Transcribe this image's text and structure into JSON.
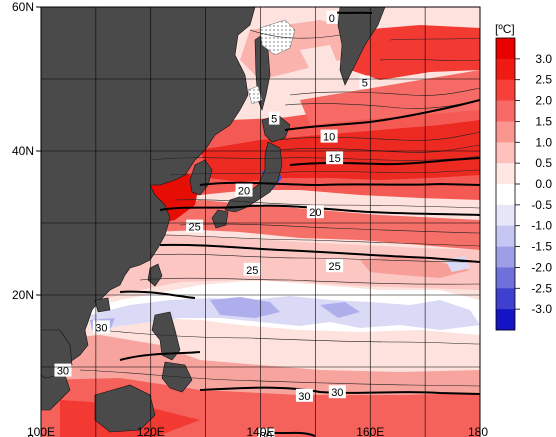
{
  "map": {
    "lat_ticks": [
      {
        "value": 0,
        "label": "0"
      },
      {
        "value": 20,
        "label": "20N"
      },
      {
        "value": 40,
        "label": "40N"
      },
      {
        "value": 60,
        "label": "60N"
      }
    ],
    "lon_ticks": [
      {
        "value": 100,
        "label": "100E"
      },
      {
        "value": 120,
        "label": "120E"
      },
      {
        "value": 140,
        "label": "140E"
      },
      {
        "value": 160,
        "label": "160E"
      },
      {
        "value": 180,
        "label": "180"
      }
    ],
    "lon_range": [
      100,
      180
    ],
    "lat_range": [
      0,
      60
    ],
    "grid_step_deg": 10,
    "land_color": "#4a4a4a",
    "contour_labels": [
      {
        "text": "0",
        "lon": 153,
        "lat": 58.5
      },
      {
        "text": "5",
        "lon": 159,
        "lat": 49.5
      },
      {
        "text": "5",
        "lon": 142.5,
        "lat": 44.5
      },
      {
        "text": "10",
        "lon": 152.5,
        "lat": 42
      },
      {
        "text": "15",
        "lon": 153.5,
        "lat": 39
      },
      {
        "text": "20",
        "lon": 137,
        "lat": 34.5
      },
      {
        "text": "20",
        "lon": 150,
        "lat": 31.5
      },
      {
        "text": "25",
        "lon": 128,
        "lat": 29.5
      },
      {
        "text": "25",
        "lon": 138.5,
        "lat": 23.5
      },
      {
        "text": "25",
        "lon": 153.5,
        "lat": 24
      },
      {
        "text": "30",
        "lon": 111,
        "lat": 15.5
      },
      {
        "text": "30",
        "lon": 104,
        "lat": 9.5
      },
      {
        "text": "30",
        "lon": 148,
        "lat": 6
      },
      {
        "text": "30",
        "lon": 154,
        "lat": 6.5
      },
      {
        "text": "30",
        "lon": 141,
        "lat": 0.5
      }
    ]
  },
  "colorbar": {
    "unit": "[ºC]",
    "ticks": [
      "3.0",
      "2.5",
      "2.0",
      "1.5",
      "1.0",
      "0.5",
      "0.0",
      "-0.5",
      "-1.0",
      "-1.5",
      "-2.0",
      "-2.5",
      "-3.0"
    ],
    "colors": [
      "#e60000",
      "#f01a14",
      "#f5413a",
      "#f86a66",
      "#fb958f",
      "#fdc0bb",
      "#fee6e3",
      "#ffffff",
      "#e6e6fa",
      "#c6c6f2",
      "#9e9ee8",
      "#7070dc",
      "#4040d0",
      "#1414c4"
    ]
  }
}
